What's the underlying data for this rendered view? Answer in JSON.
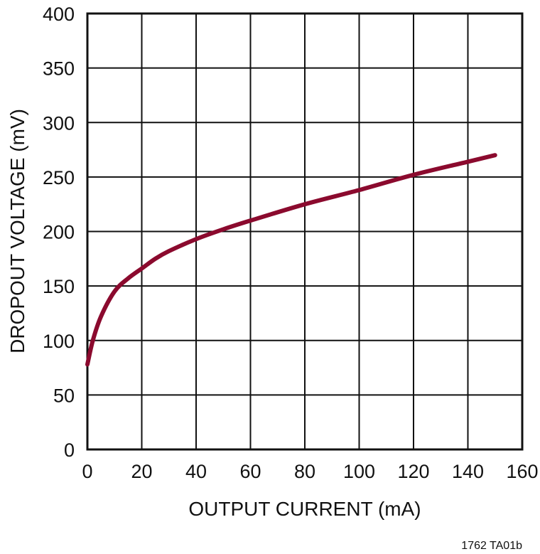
{
  "chart_data": {
    "type": "line",
    "title": "",
    "xlabel": "OUTPUT CURRENT (mA)",
    "ylabel": "DROPOUT VOLTAGE (mV)",
    "xlim": [
      0,
      160
    ],
    "ylim": [
      0,
      400
    ],
    "xticks": [
      0,
      20,
      40,
      60,
      80,
      100,
      120,
      140,
      160
    ],
    "yticks": [
      0,
      50,
      100,
      150,
      200,
      250,
      300,
      350,
      400
    ],
    "grid": true,
    "legend": null,
    "series": [
      {
        "name": "Dropout Voltage",
        "color": "#8b0a2e",
        "x": [
          0,
          2,
          5,
          10,
          15,
          20,
          25,
          30,
          40,
          50,
          60,
          80,
          100,
          120,
          140,
          150
        ],
        "y": [
          78,
          100,
          122,
          145,
          157,
          166,
          175,
          182,
          193,
          202,
          210,
          225,
          238,
          252,
          264,
          270
        ]
      }
    ],
    "annotation": "1762 TA01b"
  },
  "footer": {
    "figure_id": "1762 TA01b"
  }
}
